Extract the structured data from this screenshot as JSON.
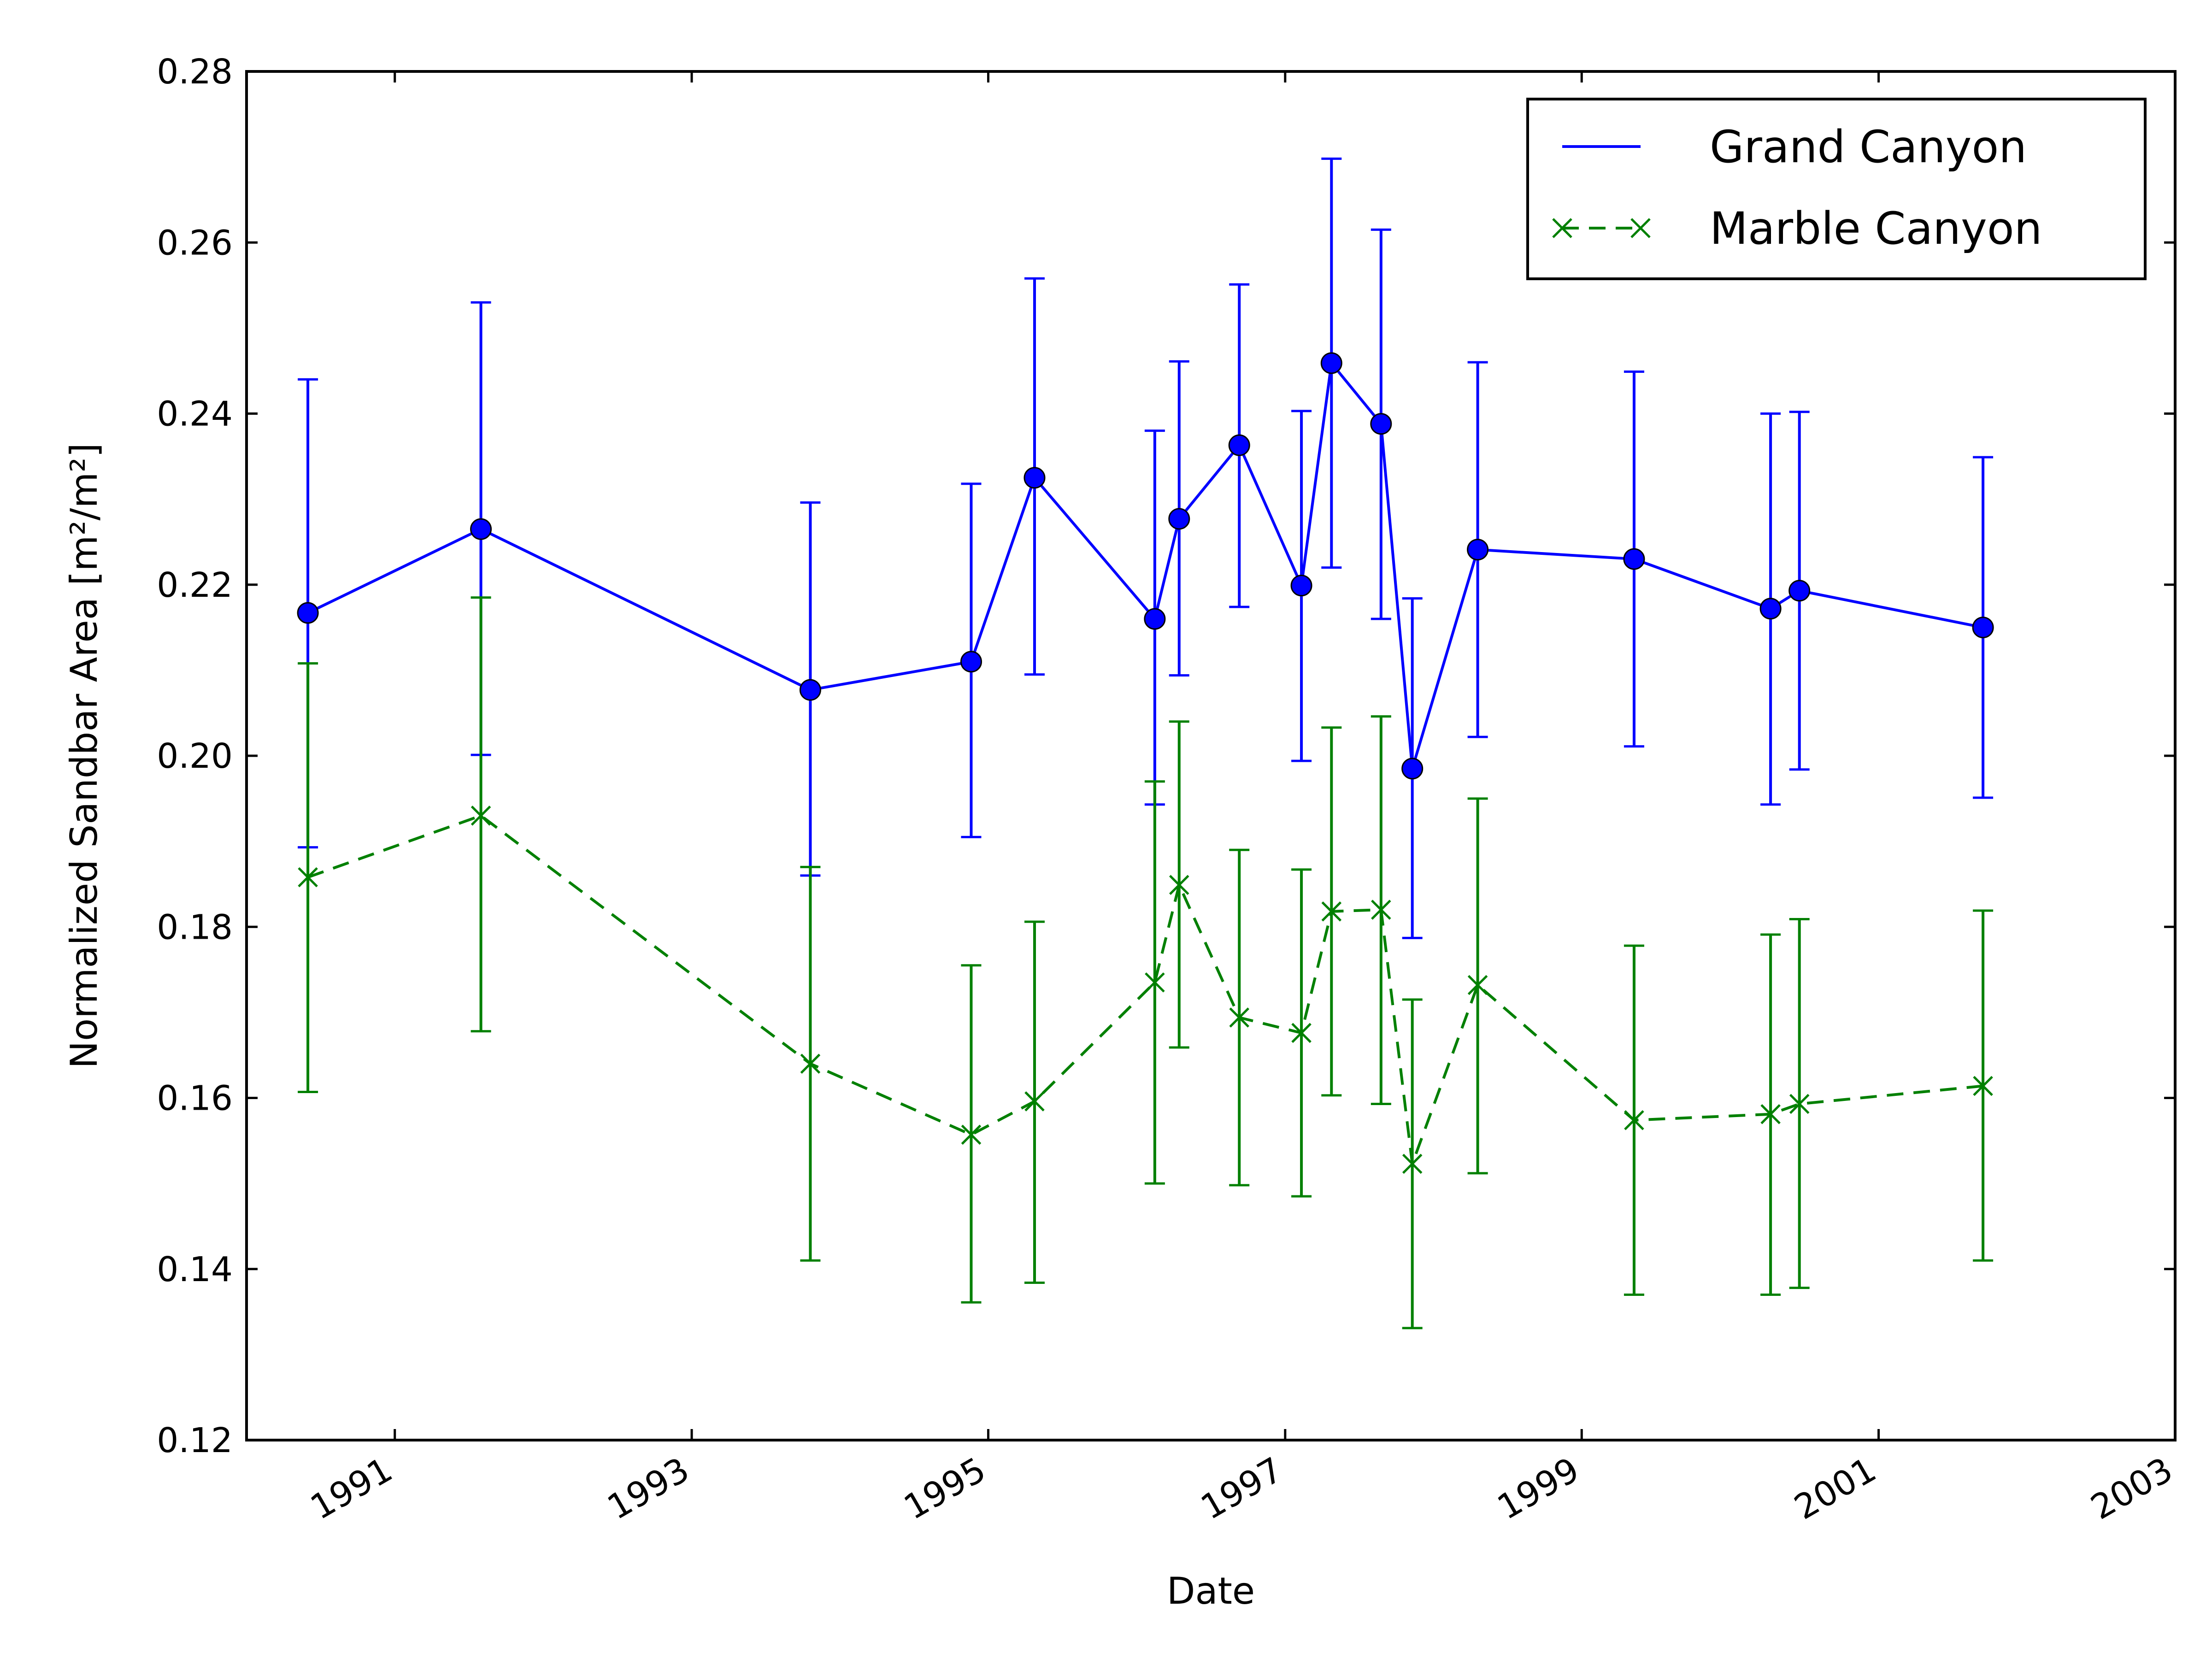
{
  "chart_data": {
    "type": "line",
    "xlabel": "Date",
    "ylabel": "Normalized Sandbar Area [m²/m²]",
    "xlim": [
      "1990-01-01",
      "2003-01-01"
    ],
    "ylim": [
      0.12,
      0.28
    ],
    "x_ticks": [
      "1991",
      "1993",
      "1995",
      "1997",
      "1999",
      "2001",
      "2003"
    ],
    "y_ticks": [
      "0.12",
      "0.14",
      "0.16",
      "0.18",
      "0.20",
      "0.22",
      "0.24",
      "0.26",
      "0.28"
    ],
    "grid": false,
    "legend_position": "top-right",
    "series": [
      {
        "name": "Grand Canyon",
        "color": "#0000ff",
        "line_style": "solid",
        "marker": "circle",
        "points": [
          {
            "x": "1990-06-01",
            "y": 0.2167,
            "err_low": 0.1893,
            "err_high": 0.244
          },
          {
            "x": "1991-08-01",
            "y": 0.2265,
            "err_low": 0.2001,
            "err_high": 0.253
          },
          {
            "x": "1993-10-20",
            "y": 0.2077,
            "err_low": 0.186,
            "err_high": 0.2296
          },
          {
            "x": "1994-11-20",
            "y": 0.211,
            "err_low": 0.1905,
            "err_high": 0.2318
          },
          {
            "x": "1995-04-25",
            "y": 0.2325,
            "err_low": 0.2095,
            "err_high": 0.2558
          },
          {
            "x": "1996-02-15",
            "y": 0.216,
            "err_low": 0.1943,
            "err_high": 0.238
          },
          {
            "x": "1996-04-15",
            "y": 0.2277,
            "err_low": 0.2094,
            "err_high": 0.2461
          },
          {
            "x": "1996-09-10",
            "y": 0.2363,
            "err_low": 0.2174,
            "err_high": 0.2551
          },
          {
            "x": "1997-02-10",
            "y": 0.2199,
            "err_low": 0.1994,
            "err_high": 0.2403
          },
          {
            "x": "1997-04-25",
            "y": 0.2459,
            "err_low": 0.222,
            "err_high": 0.2698
          },
          {
            "x": "1997-08-25",
            "y": 0.2388,
            "err_low": 0.216,
            "err_high": 0.2615
          },
          {
            "x": "1997-11-10",
            "y": 0.1985,
            "err_low": 0.1787,
            "err_high": 0.2184
          },
          {
            "x": "1998-04-20",
            "y": 0.2241,
            "err_low": 0.2022,
            "err_high": 0.246
          },
          {
            "x": "1999-05-10",
            "y": 0.223,
            "err_low": 0.2011,
            "err_high": 0.2449
          },
          {
            "x": "2000-04-10",
            "y": 0.2172,
            "err_low": 0.1943,
            "err_high": 0.24
          },
          {
            "x": "2000-06-20",
            "y": 0.2193,
            "err_low": 0.1984,
            "err_high": 0.2402
          },
          {
            "x": "2001-09-15",
            "y": 0.215,
            "err_low": 0.1951,
            "err_high": 0.2349
          }
        ]
      },
      {
        "name": "Marble Canyon",
        "color": "#008000",
        "line_style": "dashed",
        "marker": "x",
        "points": [
          {
            "x": "1990-06-01",
            "y": 0.1858,
            "err_low": 0.1607,
            "err_high": 0.2108
          },
          {
            "x": "1991-08-01",
            "y": 0.193,
            "err_low": 0.1678,
            "err_high": 0.2185
          },
          {
            "x": "1993-10-20",
            "y": 0.164,
            "err_low": 0.141,
            "err_high": 0.187
          },
          {
            "x": "1994-11-20",
            "y": 0.1557,
            "err_low": 0.1361,
            "err_high": 0.1755
          },
          {
            "x": "1995-04-25",
            "y": 0.1596,
            "err_low": 0.1384,
            "err_high": 0.1806
          },
          {
            "x": "1996-02-15",
            "y": 0.1735,
            "err_low": 0.15,
            "err_high": 0.197
          },
          {
            "x": "1996-04-15",
            "y": 0.1849,
            "err_low": 0.1659,
            "err_high": 0.204
          },
          {
            "x": "1996-09-10",
            "y": 0.1694,
            "err_low": 0.1498,
            "err_high": 0.189
          },
          {
            "x": "1997-02-10",
            "y": 0.1676,
            "err_low": 0.1485,
            "err_high": 0.1867
          },
          {
            "x": "1997-04-25",
            "y": 0.1818,
            "err_low": 0.1603,
            "err_high": 0.2033
          },
          {
            "x": "1997-08-25",
            "y": 0.182,
            "err_low": 0.1593,
            "err_high": 0.2046
          },
          {
            "x": "1997-11-10",
            "y": 0.1523,
            "err_low": 0.1331,
            "err_high": 0.1715
          },
          {
            "x": "1998-04-20",
            "y": 0.1732,
            "err_low": 0.1512,
            "err_high": 0.195
          },
          {
            "x": "1999-05-10",
            "y": 0.1574,
            "err_low": 0.137,
            "err_high": 0.1778
          },
          {
            "x": "2000-04-10",
            "y": 0.1581,
            "err_low": 0.137,
            "err_high": 0.1791
          },
          {
            "x": "2000-06-20",
            "y": 0.1593,
            "err_low": 0.1378,
            "err_high": 0.1809
          },
          {
            "x": "2001-09-15",
            "y": 0.1614,
            "err_low": 0.141,
            "err_high": 0.1819
          }
        ]
      }
    ]
  }
}
